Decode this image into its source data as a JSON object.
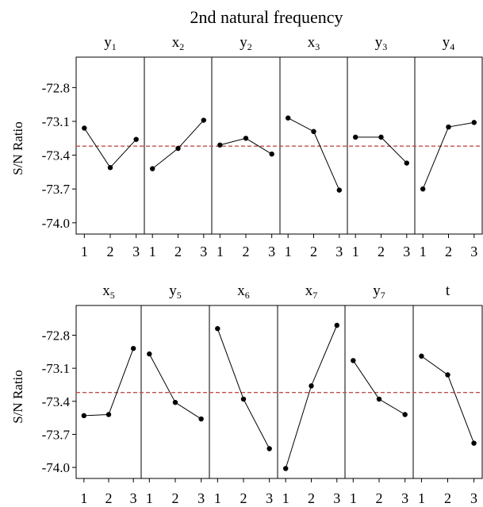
{
  "chart_data": {
    "type": "line",
    "title": "2nd natural frequency",
    "ylabel": "S/N Ratio",
    "ylim": [
      -74.1,
      -72.53
    ],
    "yticks": [
      -72.8,
      -73.1,
      -73.4,
      -73.7,
      -74.0
    ],
    "ytick_labels": [
      "-72.8",
      "-73.1",
      "-73.4",
      "-73.7",
      "-74.0"
    ],
    "levels": [
      1,
      2,
      3
    ],
    "level_labels": [
      "1",
      "2",
      "3"
    ],
    "mean": -73.32,
    "colors": {
      "mean_line": "#c0504d",
      "series": "#000000"
    },
    "panels": [
      {
        "factors": [
          {
            "main": "y",
            "sub": "1",
            "values": [
              -73.16,
              -73.51,
              -73.26
            ]
          },
          {
            "main": "x",
            "sub": "2",
            "values": [
              -73.52,
              -73.34,
              -73.09
            ]
          },
          {
            "main": "y",
            "sub": "2",
            "values": [
              -73.31,
              -73.25,
              -73.39
            ]
          },
          {
            "main": "x",
            "sub": "3",
            "values": [
              -73.07,
              -73.19,
              -73.71
            ]
          },
          {
            "main": "y",
            "sub": "3",
            "values": [
              -73.24,
              -73.24,
              -73.47
            ]
          },
          {
            "main": "y",
            "sub": "4",
            "values": [
              -73.7,
              -73.15,
              -73.11
            ]
          }
        ]
      },
      {
        "factors": [
          {
            "main": "x",
            "sub": "5",
            "values": [
              -73.53,
              -73.52,
              -72.92
            ]
          },
          {
            "main": "y",
            "sub": "5",
            "values": [
              -72.97,
              -73.41,
              -73.56
            ]
          },
          {
            "main": "x",
            "sub": "6",
            "values": [
              -72.74,
              -73.38,
              -73.83
            ]
          },
          {
            "main": "x",
            "sub": "7",
            "values": [
              -74.01,
              -73.26,
              -72.71
            ]
          },
          {
            "main": "y",
            "sub": "7",
            "values": [
              -73.03,
              -73.38,
              -73.52
            ]
          },
          {
            "main": "t",
            "sub": "",
            "values": [
              -72.99,
              -73.16,
              -73.78
            ]
          }
        ]
      }
    ]
  }
}
